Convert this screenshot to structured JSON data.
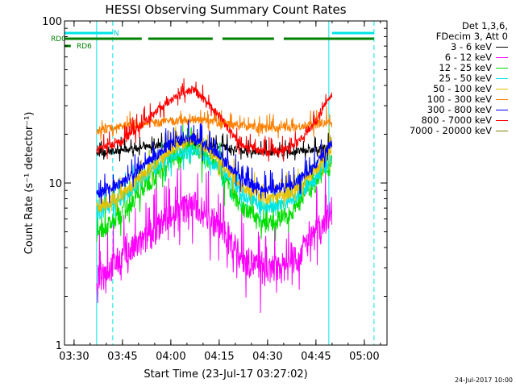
{
  "chart_data": {
    "type": "line",
    "title": "HESSI Observing Summary Count Rates",
    "xlabel": "Start Time (23-Jul-17 03:27:02)",
    "ylabel": "Count Rate (s⁻¹ detector⁻¹)",
    "yscale": "log",
    "ylim": [
      1,
      100
    ],
    "xlim": [
      "03:27:02",
      "05:07:02"
    ],
    "x_ticks": [
      "03:30",
      "03:45",
      "04:00",
      "04:15",
      "04:30",
      "04:45",
      "05:00"
    ],
    "y_ticks": [
      "1",
      "10",
      "100"
    ],
    "grid": false,
    "legend_position": "right",
    "legend_header": [
      "Det 1,3,6,",
      "FDecim 3, Att 0"
    ],
    "series": [
      {
        "name": "3 - 6 keV",
        "color": "#000000",
        "x": [
          "03:37",
          "03:45",
          "03:52",
          "04:00",
          "04:07",
          "04:15",
          "04:22",
          "04:30",
          "04:37",
          "04:45",
          "04:50"
        ],
        "values": [
          15,
          16,
          16.5,
          17.5,
          17.5,
          17,
          16,
          15.5,
          15.5,
          16,
          17
        ]
      },
      {
        "name": "6 - 12 keV",
        "color": "#ff00ff",
        "x": [
          "03:37",
          "03:45",
          "03:52",
          "04:00",
          "04:07",
          "04:15",
          "04:22",
          "04:30",
          "04:37",
          "04:45",
          "04:50"
        ],
        "values": [
          2.6,
          3.5,
          4.5,
          6.5,
          7.5,
          5.5,
          3.5,
          2.8,
          3.2,
          5,
          7
        ]
      },
      {
        "name": "12 - 25 keV",
        "color": "#00dd00",
        "x": [
          "03:37",
          "03:45",
          "03:52",
          "04:00",
          "04:07",
          "04:15",
          "04:22",
          "04:30",
          "04:37",
          "04:45",
          "04:50"
        ],
        "values": [
          4.8,
          6.5,
          9.5,
          14,
          17,
          12,
          7,
          5.5,
          6.5,
          10,
          14
        ]
      },
      {
        "name": "25 - 50 keV",
        "color": "#00e5e5",
        "x": [
          "03:37",
          "03:45",
          "03:52",
          "04:00",
          "04:07",
          "04:15",
          "04:22",
          "04:30",
          "04:37",
          "04:45",
          "04:50"
        ],
        "values": [
          6.3,
          8,
          11,
          14.5,
          16,
          12.5,
          8.5,
          7,
          7.5,
          10.5,
          14.5
        ]
      },
      {
        "name": "50 - 100 keV",
        "color": "#e8c000",
        "x": [
          "03:37",
          "03:45",
          "03:52",
          "04:00",
          "04:07",
          "04:15",
          "04:22",
          "04:30",
          "04:37",
          "04:45",
          "04:50"
        ],
        "values": [
          7,
          8.5,
          11.5,
          16,
          19,
          14,
          9.5,
          8,
          8.5,
          12,
          17
        ]
      },
      {
        "name": "100 - 300 keV",
        "color": "#ff8000",
        "x": [
          "03:37",
          "03:45",
          "03:52",
          "04:00",
          "04:07",
          "04:15",
          "04:22",
          "04:30",
          "04:37",
          "04:45",
          "04:50"
        ],
        "values": [
          21,
          22.5,
          23,
          24,
          24.5,
          23.5,
          22.5,
          22,
          22,
          23,
          24
        ]
      },
      {
        "name": "300 - 800 keV",
        "color": "#0000ff",
        "x": [
          "03:37",
          "03:45",
          "03:52",
          "04:00",
          "04:07",
          "04:15",
          "04:22",
          "04:30",
          "04:37",
          "04:45",
          "04:50"
        ],
        "values": [
          8.6,
          10,
          13,
          17.5,
          19,
          15,
          10.5,
          9,
          9.5,
          13,
          18
        ]
      },
      {
        "name": "800 - 7000 keV",
        "color": "#ff0000",
        "x": [
          "03:37",
          "03:45",
          "03:52",
          "04:00",
          "04:07",
          "04:15",
          "04:22",
          "04:30",
          "04:37",
          "04:45",
          "04:50"
        ],
        "values": [
          16,
          18,
          24,
          33,
          38,
          26,
          17,
          15.5,
          16,
          24,
          36
        ]
      },
      {
        "name": "7000 - 20000 keV",
        "color": "#808000",
        "x": [],
        "values": []
      }
    ],
    "annotations": {
      "N_label": "N",
      "RD0_label": "RD0",
      "RD6_label": "RD6",
      "N_bars": [
        [
          "03:27",
          "03:42"
        ],
        [
          "04:50",
          "05:03"
        ]
      ],
      "RD0_bars": [
        [
          "03:27",
          "03:51"
        ],
        [
          "03:53",
          "04:13"
        ],
        [
          "04:16",
          "04:32"
        ],
        [
          "04:35",
          "05:03"
        ]
      ],
      "RD6_bars": [
        [
          "03:27",
          "03:29"
        ]
      ],
      "solid_lines_cyan": [
        "03:37",
        "04:49"
      ],
      "dashed_lines_cyan": [
        "03:42",
        "05:03"
      ]
    },
    "timestamp": "24-Jul-2017 10:00"
  }
}
